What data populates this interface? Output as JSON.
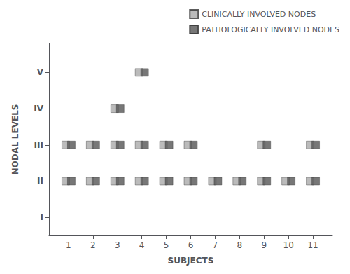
{
  "chart_data": {
    "type": "scatter",
    "xlabel": "SUBJECTS",
    "ylabel": "NODAL LEVELS",
    "xlim": [
      0.2,
      11.8
    ],
    "xticks": [
      1,
      2,
      3,
      4,
      5,
      6,
      7,
      8,
      9,
      10,
      11
    ],
    "ylim": [
      0.5,
      5.8
    ],
    "yticks": [
      {
        "value": 1,
        "label": "I"
      },
      {
        "value": 2,
        "label": "II"
      },
      {
        "value": 3,
        "label": "III"
      },
      {
        "value": 4,
        "label": "IV"
      },
      {
        "value": 5,
        "label": "V"
      }
    ],
    "grid": false,
    "legend": "upper right",
    "series": [
      {
        "name": "CLINICALLY INVOLVED NODES",
        "color": "#aaaaaa",
        "marker": "square",
        "x": [
          1,
          1,
          2,
          2,
          3,
          3,
          3,
          4,
          4,
          4,
          5,
          5,
          6,
          6,
          7,
          8,
          9,
          9,
          10,
          11,
          11
        ],
        "y": [
          2,
          3,
          2,
          3,
          2,
          3,
          4,
          2,
          3,
          5,
          2,
          3,
          2,
          3,
          2,
          2,
          2,
          3,
          2,
          2,
          3
        ]
      },
      {
        "name": "PATHOLOGICALLY INVOLVED NODES",
        "color": "#555555",
        "marker": "square",
        "x": [
          1,
          1,
          2,
          2,
          3,
          3,
          3,
          4,
          4,
          4,
          5,
          5,
          6,
          6,
          7,
          8,
          9,
          9,
          10,
          11,
          11
        ],
        "y": [
          2,
          3,
          2,
          3,
          2,
          3,
          4,
          2,
          3,
          5,
          2,
          3,
          2,
          3,
          2,
          2,
          2,
          3,
          2,
          2,
          3
        ]
      }
    ]
  }
}
